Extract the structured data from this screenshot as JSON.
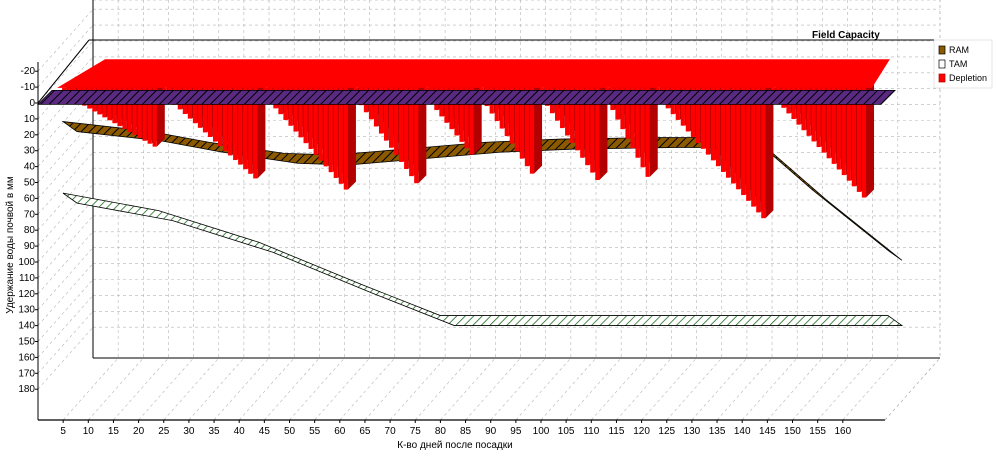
{
  "chart_data": {
    "type": "bar",
    "xlabel": "К-во дней после посадки",
    "ylabel": "Удержание воды почвой в мм",
    "annotation": "Field Capacity",
    "x_ticks": [
      5,
      10,
      15,
      20,
      25,
      30,
      35,
      40,
      45,
      50,
      55,
      60,
      65,
      70,
      75,
      80,
      85,
      90,
      95,
      100,
      105,
      110,
      115,
      120,
      125,
      130,
      135,
      140,
      145,
      150,
      155,
      160
    ],
    "y_ticks": [
      -20,
      -10,
      0,
      10,
      20,
      30,
      40,
      50,
      60,
      70,
      80,
      90,
      100,
      110,
      120,
      130,
      140,
      150,
      160,
      170,
      180
    ],
    "ylim": [
      -20,
      180
    ],
    "xlim": [
      1,
      165
    ],
    "grid": true,
    "legend_position": "right",
    "series": [
      {
        "name": "RAM",
        "kind": "area",
        "color": "#8B5A00",
        "x": [
          1,
          18,
          30,
          45,
          55,
          70,
          85,
          100,
          120,
          135,
          138,
          150,
          165
        ],
        "values": [
          23,
          29,
          36,
          43,
          44,
          40,
          36,
          34,
          33,
          33,
          33,
          66,
          104
        ]
      },
      {
        "name": "TAM",
        "kind": "area",
        "color": "#d8f5d0",
        "x": [
          1,
          20,
          40,
          60,
          76,
          80,
          165
        ],
        "values": [
          68,
          79,
          99,
          125,
          145,
          145,
          145
        ]
      },
      {
        "name": "Depletion",
        "kind": "bar",
        "color": "#ff0000",
        "cycles": [
          {
            "start": 2,
            "end": 20,
            "peak": 35
          },
          {
            "start": 22,
            "end": 40,
            "peak": 55
          },
          {
            "start": 42,
            "end": 58,
            "peak": 62
          },
          {
            "start": 60,
            "end": 72,
            "peak": 58
          },
          {
            "start": 74,
            "end": 83,
            "peak": 40
          },
          {
            "start": 85,
            "end": 95,
            "peak": 52
          },
          {
            "start": 97,
            "end": 108,
            "peak": 56
          },
          {
            "start": 110,
            "end": 118,
            "peak": 54
          },
          {
            "start": 120,
            "end": 141,
            "peak": 80
          },
          {
            "start": 143,
            "end": 161,
            "peak": 67
          }
        ]
      }
    ]
  }
}
